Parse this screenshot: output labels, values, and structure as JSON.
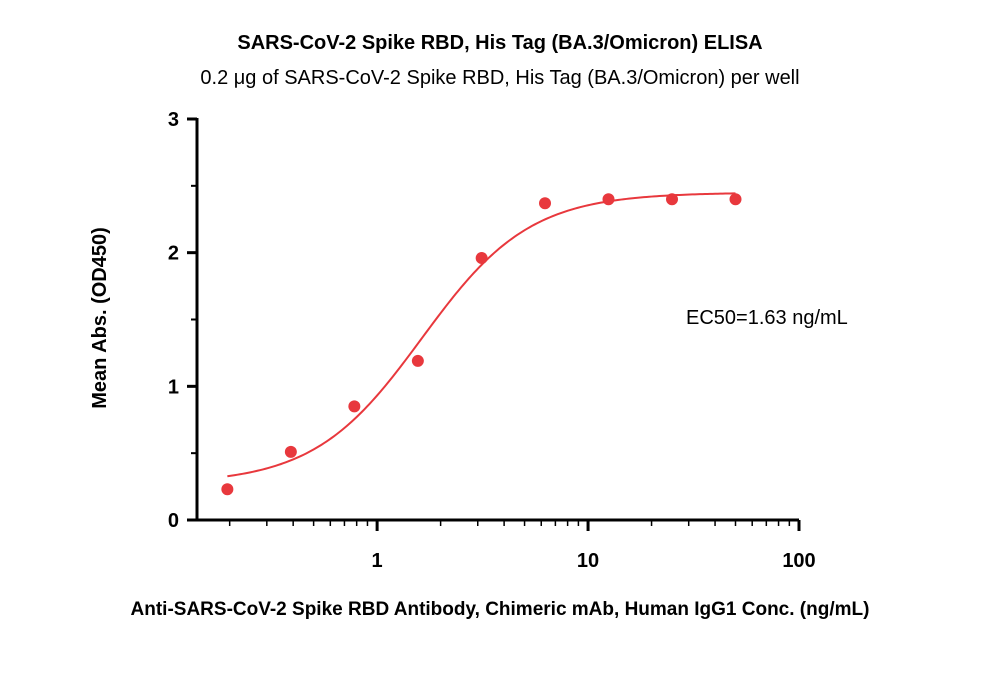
{
  "chart_data": {
    "type": "scatter",
    "title": "SARS-CoV-2 Spike RBD, His Tag (BA.3/Omicron) ELISA",
    "subtitle": "0.2 μg of SARS-CoV-2 Spike RBD, His Tag (BA.3/Omicron) per well",
    "xlabel": "Anti-SARS-CoV-2 Spike RBD Antibody, Chimeric mAb, Human IgG1 Conc. (ng/mL)",
    "ylabel": "Mean Abs. (OD450)",
    "x_scale": "log",
    "xlim": [
      0.14,
      100
    ],
    "ylim": [
      0,
      3
    ],
    "x_ticks": [
      1,
      10,
      100
    ],
    "x_tick_labels": [
      "1",
      "10",
      "100"
    ],
    "y_ticks": [
      0,
      1,
      2,
      3
    ],
    "y_tick_labels": [
      "0",
      "1",
      "2",
      "3"
    ],
    "grid": false,
    "series": [
      {
        "color": "#e8383d",
        "x": [
          0.195,
          0.39,
          0.78,
          1.56,
          3.13,
          6.25,
          12.5,
          25,
          50
        ],
        "y": [
          0.23,
          0.51,
          0.85,
          1.19,
          1.96,
          2.37,
          2.4,
          2.4,
          2.4
        ]
      }
    ],
    "fit_curve": {
      "model": "4PL",
      "bottom": 0.27,
      "top": 2.45,
      "ec50": 1.63,
      "hill": 1.7,
      "color": "#e8383d"
    },
    "annotation": "EC50=1.63 ng/mL"
  }
}
